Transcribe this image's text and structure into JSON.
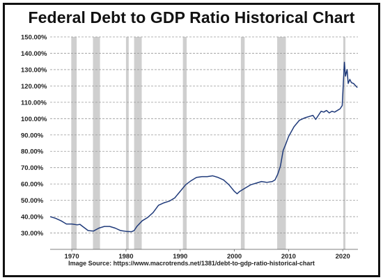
{
  "chart_data": {
    "type": "line",
    "title": "Federal Debt to GDP Ratio Historical Chart",
    "source_label": "Image Source:",
    "source_url": "https://www.macrotrends.net/1381/debt-to-gdp-ratio-historical-chart",
    "xlabel": "",
    "ylabel": "",
    "xlim": [
      1966.0,
      2022.8
    ],
    "ylim": [
      20,
      150
    ],
    "x_ticks": [
      {
        "value": 1970,
        "label": "1970"
      },
      {
        "value": 1980,
        "label": "1980"
      },
      {
        "value": 1990,
        "label": "1990"
      },
      {
        "value": 2000,
        "label": "2000"
      },
      {
        "value": 2010,
        "label": "2010"
      },
      {
        "value": 2020,
        "label": "2020"
      }
    ],
    "y_ticks": [
      {
        "value": 30,
        "label": "30.00%"
      },
      {
        "value": 40,
        "label": "40.00%"
      },
      {
        "value": 50,
        "label": "50.00%"
      },
      {
        "value": 60,
        "label": "60.00%"
      },
      {
        "value": 70,
        "label": "70.00%"
      },
      {
        "value": 80,
        "label": "80.00%"
      },
      {
        "value": 90,
        "label": "90.00%"
      },
      {
        "value": 100,
        "label": "100.00%"
      },
      {
        "value": 110,
        "label": "110.00%"
      },
      {
        "value": 120,
        "label": "120.00%"
      },
      {
        "value": 130,
        "label": "130.00%"
      },
      {
        "value": 140,
        "label": "140.00%"
      },
      {
        "value": 150,
        "label": "150.00%"
      }
    ],
    "grid": true,
    "recessions": [
      [
        1969.9,
        1970.9
      ],
      [
        1973.9,
        1975.2
      ],
      [
        1980.0,
        1980.5
      ],
      [
        1981.5,
        1982.9
      ],
      [
        1990.5,
        1991.2
      ],
      [
        2001.2,
        2001.9
      ],
      [
        2007.9,
        2009.5
      ],
      [
        2020.1,
        2020.4
      ]
    ],
    "series": [
      {
        "color": "#1f3a7a",
        "x": [
          1966.0,
          1967.0,
          1968.0,
          1968.5,
          1969.0,
          1970.0,
          1971.0,
          1971.5,
          1972.0,
          1973.0,
          1974.0,
          1975.0,
          1976.0,
          1977.0,
          1978.0,
          1979.0,
          1980.0,
          1981.0,
          1981.5,
          1982.0,
          1983.0,
          1984.0,
          1985.0,
          1986.0,
          1987.0,
          1988.0,
          1989.0,
          1990.0,
          1991.0,
          1992.0,
          1993.0,
          1994.0,
          1995.0,
          1996.0,
          1997.0,
          1998.0,
          1999.0,
          2000.0,
          2000.5,
          2001.0,
          2002.0,
          2003.0,
          2004.0,
          2005.0,
          2006.0,
          2007.0,
          2007.5,
          2008.0,
          2008.5,
          2009.0,
          2009.5,
          2010.0,
          2011.0,
          2012.0,
          2013.0,
          2014.0,
          2014.5,
          2015.0,
          2016.0,
          2016.5,
          2017.0,
          2017.5,
          2018.0,
          2018.5,
          2019.0,
          2019.5,
          2019.9,
          2020.2,
          2020.3,
          2020.5,
          2020.8,
          2021.0,
          2021.3,
          2021.6,
          2022.0,
          2022.4,
          2022.7
        ],
        "values": [
          40.0,
          39.0,
          37.5,
          36.5,
          35.5,
          35.5,
          35.0,
          35.3,
          34.0,
          31.5,
          31.2,
          33.0,
          34.0,
          34.0,
          33.0,
          31.5,
          31.0,
          30.8,
          31.5,
          34.0,
          37.5,
          39.5,
          42.5,
          47.0,
          48.5,
          49.5,
          51.5,
          55.5,
          59.5,
          62.0,
          64.0,
          64.5,
          64.5,
          65.0,
          64.0,
          62.5,
          59.5,
          55.5,
          54.0,
          55.5,
          57.5,
          59.5,
          60.5,
          61.5,
          61.0,
          61.5,
          62.5,
          66.0,
          71.0,
          80.5,
          84.5,
          89.0,
          95.0,
          99.0,
          100.5,
          101.5,
          102.0,
          99.5,
          104.5,
          104.0,
          105.0,
          103.5,
          104.5,
          104.0,
          105.0,
          106.0,
          108.0,
          128.0,
          134.5,
          126.0,
          130.0,
          121.5,
          124.0,
          122.0,
          121.5,
          120.0,
          119.0
        ]
      }
    ]
  }
}
